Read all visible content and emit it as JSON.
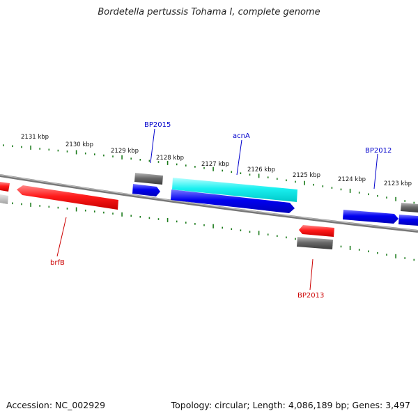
{
  "header": {
    "title": "Bordetella pertussis Tohama I, complete genome"
  },
  "footer": {
    "accession": "Accession: NC_002929",
    "summary": "Topology: circular; Length: 4,086,189 bp; Genes: 3,497"
  },
  "colors": {
    "forward_cds": "#0000ee",
    "reverse_cds": "#ee0000",
    "rna": "#00eeee",
    "pseudo": "#666666",
    "backbone": "#888888",
    "ticks": "#1a7a1a",
    "label_forward": "#0000cc",
    "label_reverse": "#cc0000"
  },
  "scale": {
    "unit": "kbp",
    "labels": [
      "2131 kbp",
      "2130 kbp",
      "2129 kbp",
      "2128 kbp",
      "2127 kbp",
      "2126 kbp",
      "2125 kbp",
      "2124 kbp",
      "2123 kbp"
    ]
  },
  "gene_labels": [
    {
      "name": "BP2015",
      "strand": "forward"
    },
    {
      "name": "acnA",
      "strand": "forward"
    },
    {
      "name": "BP2012",
      "strand": "forward"
    },
    {
      "name": "brfB",
      "strand": "reverse"
    },
    {
      "name": "BP2013",
      "strand": "reverse"
    }
  ]
}
